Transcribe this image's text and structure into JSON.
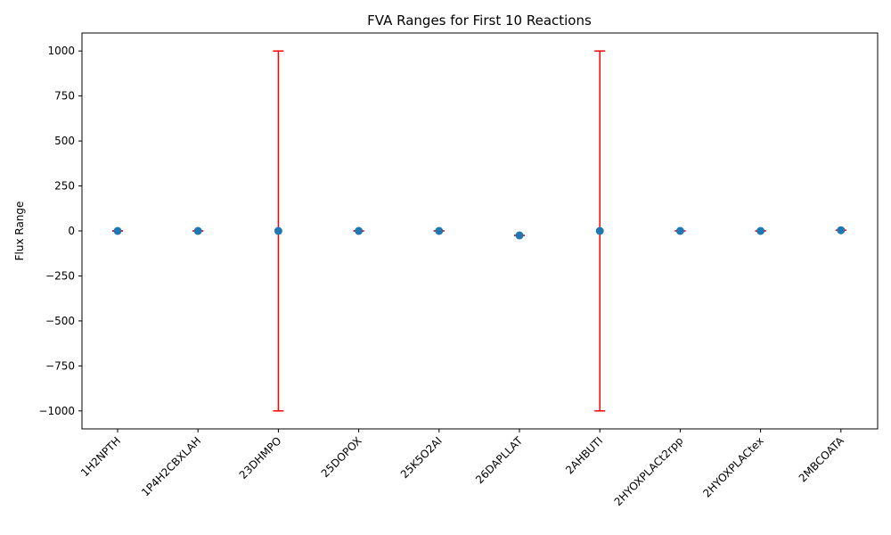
{
  "chart_data": {
    "type": "scatter",
    "title": "FVA Ranges for First 10 Reactions",
    "xlabel": "",
    "ylabel": "Flux Range",
    "ylim": [
      -1100,
      1100
    ],
    "yticks": [
      -1000,
      -750,
      -500,
      -250,
      0,
      250,
      500,
      750,
      1000
    ],
    "ytick_labels": [
      "−1000",
      "−750",
      "−500",
      "−250",
      "0",
      "250",
      "500",
      "750",
      "1000"
    ],
    "grid": false,
    "categories": [
      "1H2NPTH",
      "1P4H2CBXLAH",
      "23DHMPO",
      "25DOPOX",
      "25K5O2AI",
      "26DAPLLAT",
      "2AHBUTI",
      "2HYOXPLACt2rpp",
      "2HYOXPLACtex",
      "2MBCOATA"
    ],
    "points": [
      0,
      0,
      0,
      0,
      0,
      -25,
      0,
      0,
      0,
      4
    ],
    "range_min": [
      0,
      0,
      -1000,
      0,
      0,
      -25,
      -1000,
      0,
      0,
      4
    ],
    "range_max": [
      0,
      0,
      1000,
      0,
      0,
      -25,
      1000,
      0,
      0,
      4
    ],
    "colors": {
      "point": "#1f77b4",
      "range": "#ff0000"
    }
  }
}
